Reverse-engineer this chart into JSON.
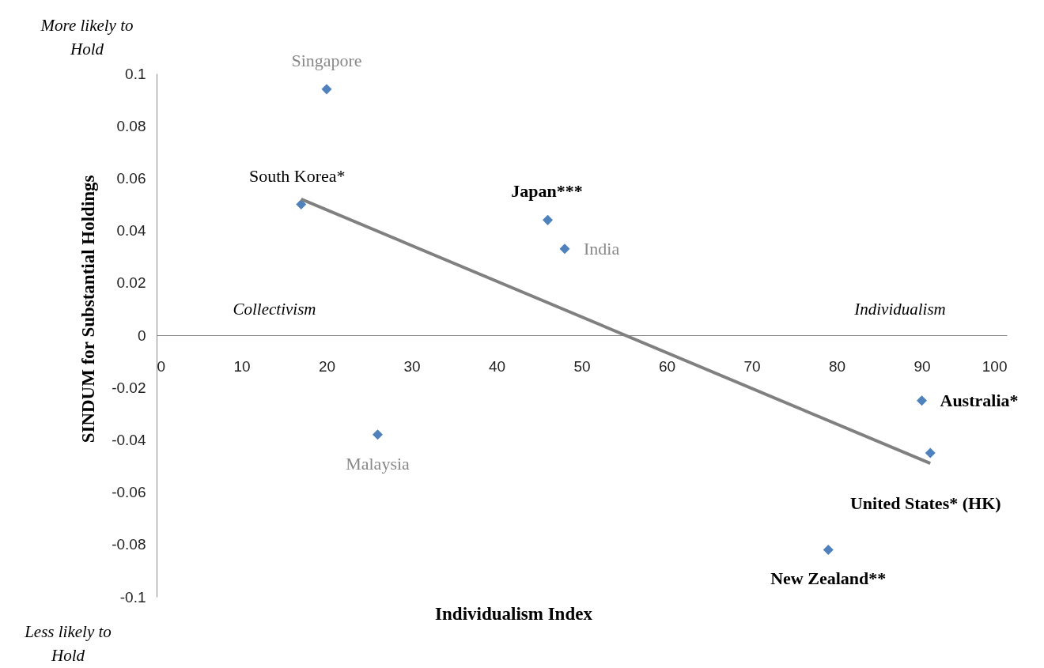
{
  "chart_data": {
    "type": "scatter",
    "xlabel": "Individualism Index",
    "ylabel": "SINDUM for Substantial Holdings",
    "xlim": [
      0,
      100
    ],
    "xticks": [
      0,
      10,
      20,
      30,
      40,
      50,
      60,
      70,
      80,
      90,
      100
    ],
    "ylim": [
      -0.1,
      0.1
    ],
    "yticks": [
      -0.1,
      -0.08,
      -0.06,
      -0.04,
      -0.02,
      0,
      0.02,
      0.04,
      0.06,
      0.08,
      0.1
    ],
    "grid": false,
    "series": [
      {
        "marker": "diamond",
        "color": "#4f81bd",
        "x": [
          20,
          17,
          46,
          48,
          26,
          90,
          91,
          79
        ],
        "values": [
          0.094,
          0.05,
          0.044,
          0.033,
          -0.038,
          -0.025,
          -0.045,
          -0.082
        ]
      },
      {
        "type": "line",
        "color": "#808080",
        "x": [
          17,
          91
        ],
        "values": [
          0.052,
          -0.049
        ]
      }
    ],
    "annotations": [
      {
        "text": "Singapore",
        "x": 20,
        "y": 0.094
      },
      {
        "text": "South Korea*",
        "x": 17,
        "y": 0.05
      },
      {
        "text": "Japan***",
        "x": 46,
        "y": 0.044
      },
      {
        "text": "India",
        "x": 48,
        "y": 0.033
      },
      {
        "text": "Malaysia",
        "x": 26,
        "y": -0.038
      },
      {
        "text": "Australia*",
        "x": 90,
        "y": -0.025
      },
      {
        "text": "United States* (HK)",
        "x": 91,
        "y": -0.045
      },
      {
        "text": "New Zealand**",
        "x": 79,
        "y": -0.082
      },
      "Collectivism",
      "Individualism",
      "More likely to Hold",
      "Less likely to Hold"
    ]
  }
}
